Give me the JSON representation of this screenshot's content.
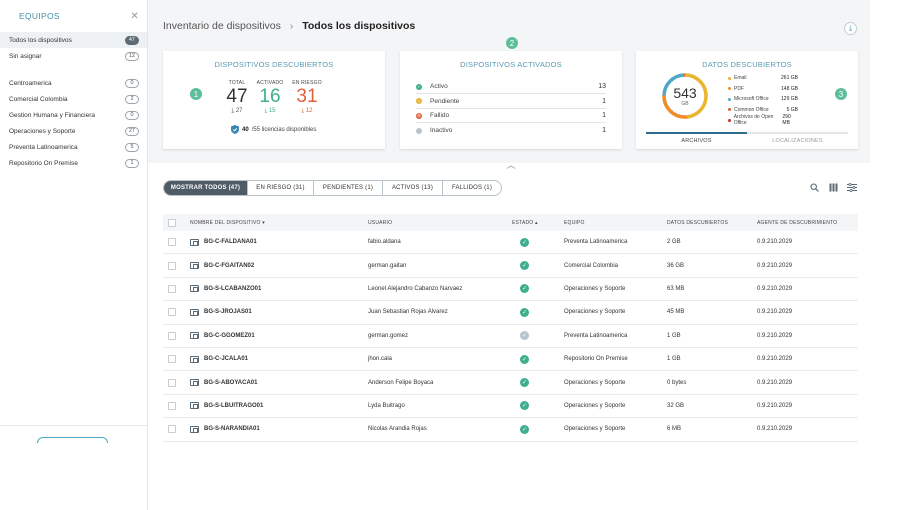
{
  "sidebar": {
    "title": "EQUIPOS",
    "top_items": [
      {
        "label": "Todos los dispositivos",
        "count": "47"
      },
      {
        "label": "Sin asignar",
        "count": "12"
      }
    ],
    "team_items": [
      {
        "label": "Centroamerica",
        "count": "0"
      },
      {
        "label": "Comercial Colombia",
        "count": "2"
      },
      {
        "label": "Gestion Humana y Financiera",
        "count": "0"
      },
      {
        "label": "Operaciones y Soporte",
        "count": "27"
      },
      {
        "label": "Preventa Latinoamerica",
        "count": "5"
      },
      {
        "label": "Repositorio On Premise",
        "count": "1"
      }
    ]
  },
  "header": {
    "parent": "Inventario de dispositivos",
    "current": "Todos los dispositivos"
  },
  "card_discovered": {
    "step": "1",
    "title": "DISPOSITIVOS DESCUBIERTOS",
    "total_label": "TOTAL",
    "total": "47",
    "total_sub": "27",
    "activated_label": "ACTIVADO",
    "activated": "16",
    "activated_sub": "15",
    "risk_label": "EN RIESGO",
    "risk": "31",
    "risk_sub": "12",
    "licenses_used": "40",
    "licenses_text": "/55 licencias disponibles"
  },
  "card_activated": {
    "step": "2",
    "title": "DISPOSITIVOS ACTIVADOS",
    "rows": [
      {
        "label": "Activo",
        "value": "13",
        "color": "#3fae8e"
      },
      {
        "label": "Pendiente",
        "value": "1",
        "color": "#e8b630"
      },
      {
        "label": "Fallido",
        "value": "1",
        "color": "#e0603a"
      },
      {
        "label": "Inactivo",
        "value": "1",
        "color": "#b9c3ca"
      }
    ]
  },
  "card_data": {
    "step": "3",
    "title": "DATOS DESCUBIERTOS",
    "total": "543",
    "unit": "GB",
    "legend": [
      {
        "label": "Email",
        "value": "261 GB",
        "color": "#e8b630"
      },
      {
        "label": "PDF",
        "value": "148 GB",
        "color": "#f28c28"
      },
      {
        "label": "Microsoft Office",
        "value": "129 GB",
        "color": "#4fa9c6"
      },
      {
        "label": "Common Office",
        "value": "5 GB",
        "color": "#e0603a"
      },
      {
        "label": "Archivos de Open Office",
        "value": "290 MB",
        "color": "#c0392b"
      }
    ],
    "tabs": [
      "ARCHIVOS",
      "LOCALIZACIONES"
    ]
  },
  "filters": [
    "MOSTRAR TODOS (47)",
    "EN RIESGO (31)",
    "PENDIENTES (1)",
    "ACTIVOS (13)",
    "FALLIDOS (1)"
  ],
  "table": {
    "columns": [
      "NOMBRE DEL DISPOSITIVO",
      "USUARIO",
      "ESTADO",
      "EQUIPO",
      "DATOS DESCUBIERTOS",
      "AGENTE DE DESCUBRIMIENTO"
    ],
    "rows": [
      {
        "device": "BG-C-FALDANA01",
        "user": "fabio.aldana",
        "status": "ok",
        "team": "Preventa Latinoamerica",
        "data": "2 GB",
        "agent": "0.9.210.2029"
      },
      {
        "device": "BG-C-FGAITAN02",
        "user": "german.gaitan",
        "status": "ok",
        "team": "Comercial Colombia",
        "data": "36 GB",
        "agent": "0.9.210.2029"
      },
      {
        "device": "BG-S-LCABANZO01",
        "user": "Leonel Alejandro Cabanzo Narvaez",
        "status": "ok",
        "team": "Operaciones y Soporte",
        "data": "63 MB",
        "agent": "0.9.210.2029"
      },
      {
        "device": "BG-S-JROJAS01",
        "user": "Juan Sebastian Rojas Alvarez",
        "status": "ok",
        "team": "Operaciones y Soporte",
        "data": "45 MB",
        "agent": "0.9.210.2029"
      },
      {
        "device": "BG-C-GGOMEZ01",
        "user": "german.gomez",
        "status": "inactive",
        "team": "Preventa Latinoamerica",
        "data": "1 GB",
        "agent": "0.9.210.2029"
      },
      {
        "device": "BG-C-JCALA01",
        "user": "jhon.cala",
        "status": "ok",
        "team": "Repositorio On Premise",
        "data": "1 GB",
        "agent": "0.9.210.2029"
      },
      {
        "device": "BG-S-ABOYACA01",
        "user": "Anderson Felipe Boyaca",
        "status": "ok",
        "team": "Operaciones y Soporte",
        "data": "0 bytes",
        "agent": "0.9.210.2029"
      },
      {
        "device": "BG-S-LBUITRAGO01",
        "user": "Lyda Buitrago",
        "status": "ok",
        "team": "Operaciones y Soporte",
        "data": "32 GB",
        "agent": "0.9.210.2029"
      },
      {
        "device": "BG-S-NARANDIA01",
        "user": "Nicolas Arandia Rojas",
        "status": "ok",
        "team": "Operaciones y Soporte",
        "data": "6 MB",
        "agent": "0.9.210.2029"
      }
    ]
  }
}
